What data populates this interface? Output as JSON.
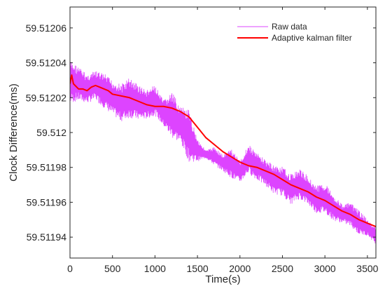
{
  "chart_data": {
    "type": "line",
    "xlabel": "Time(s)",
    "ylabel": "Clock Difference(ms)",
    "xlim": [
      0,
      3600
    ],
    "ylim": [
      59.511928,
      59.512072
    ],
    "x_ticks": [
      0,
      500,
      1000,
      1500,
      2000,
      2500,
      3000,
      3500
    ],
    "x_tick_labels": [
      "0",
      "500",
      "1000",
      "1500",
      "2000",
      "2500",
      "3000",
      "3500"
    ],
    "y_ticks": [
      59.51194,
      59.51196,
      59.51198,
      59.512,
      59.51202,
      59.51204,
      59.51206
    ],
    "y_tick_labels": [
      "59.51194",
      "59.51196",
      "59.51198",
      "59.512",
      "59.51202",
      "59.51204",
      "59.51206"
    ],
    "grid": false,
    "legend": "top-right",
    "series": [
      {
        "name": "Raw data",
        "color": "#dd44ff",
        "x": [
          0,
          100,
          200,
          300,
          400,
          500,
          600,
          700,
          800,
          900,
          1000,
          1100,
          1200,
          1300,
          1400,
          1500,
          1600,
          1700,
          1800,
          1900,
          2000,
          2100,
          2200,
          2300,
          2400,
          2500,
          2600,
          2700,
          2800,
          2900,
          3000,
          3100,
          3200,
          3300,
          3400,
          3500,
          3600
        ],
        "y_low": [
          59.512014,
          59.512016,
          59.512015,
          59.512017,
          59.512012,
          59.512008,
          59.512004,
          59.512006,
          59.512005,
          59.512006,
          59.512008,
          59.512002,
          59.511994,
          59.511992,
          59.51198,
          59.511982,
          59.511985,
          59.51198,
          59.511977,
          59.511972,
          59.51197,
          59.511975,
          59.511971,
          59.511968,
          59.511963,
          59.511962,
          59.511957,
          59.51196,
          59.511957,
          59.511952,
          59.511952,
          59.511948,
          59.511947,
          59.511945,
          59.51194,
          59.51194,
          59.511935
        ],
        "y_high": [
          59.512044,
          59.51204,
          59.512035,
          59.512037,
          59.512036,
          59.512032,
          59.51203,
          59.512034,
          59.51203,
          59.512026,
          59.512029,
          59.51202,
          59.512026,
          59.512017,
          59.512016,
          59.511998,
          59.51199,
          59.511993,
          59.511988,
          59.511993,
          59.511985,
          59.511995,
          59.51199,
          59.511986,
          59.511983,
          59.511982,
          59.511978,
          59.511981,
          59.511977,
          59.511971,
          59.511973,
          59.511966,
          59.51196,
          59.511961,
          59.511957,
          59.511951,
          59.511946
        ]
      },
      {
        "name": "Adaptive kalman filter",
        "color": "#ff0000",
        "x": [
          0,
          20,
          40,
          60,
          100,
          150,
          200,
          250,
          300,
          350,
          400,
          450,
          500,
          600,
          700,
          800,
          900,
          1000,
          1100,
          1200,
          1300,
          1400,
          1500,
          1600,
          1700,
          1800,
          1900,
          2000,
          2100,
          2200,
          2300,
          2400,
          2500,
          2600,
          2700,
          2800,
          2900,
          3000,
          3100,
          3200,
          3300,
          3400,
          3500,
          3600
        ],
        "y": [
          59.512028,
          59.512033,
          59.512028,
          59.512027,
          59.512025,
          59.512025,
          59.512024,
          59.512026,
          59.512027,
          59.512026,
          59.512025,
          59.512024,
          59.512022,
          59.512021,
          59.51202,
          59.512018,
          59.512016,
          59.512015,
          59.512015,
          59.512014,
          59.512012,
          59.512009,
          59.512003,
          59.511997,
          59.511993,
          59.511989,
          59.511986,
          59.511983,
          59.511981,
          59.51198,
          59.511978,
          59.511976,
          59.511973,
          59.51197,
          59.511968,
          59.511966,
          59.511963,
          59.511961,
          59.511958,
          59.511955,
          59.511953,
          59.51195,
          59.511948,
          59.511946
        ]
      }
    ]
  }
}
